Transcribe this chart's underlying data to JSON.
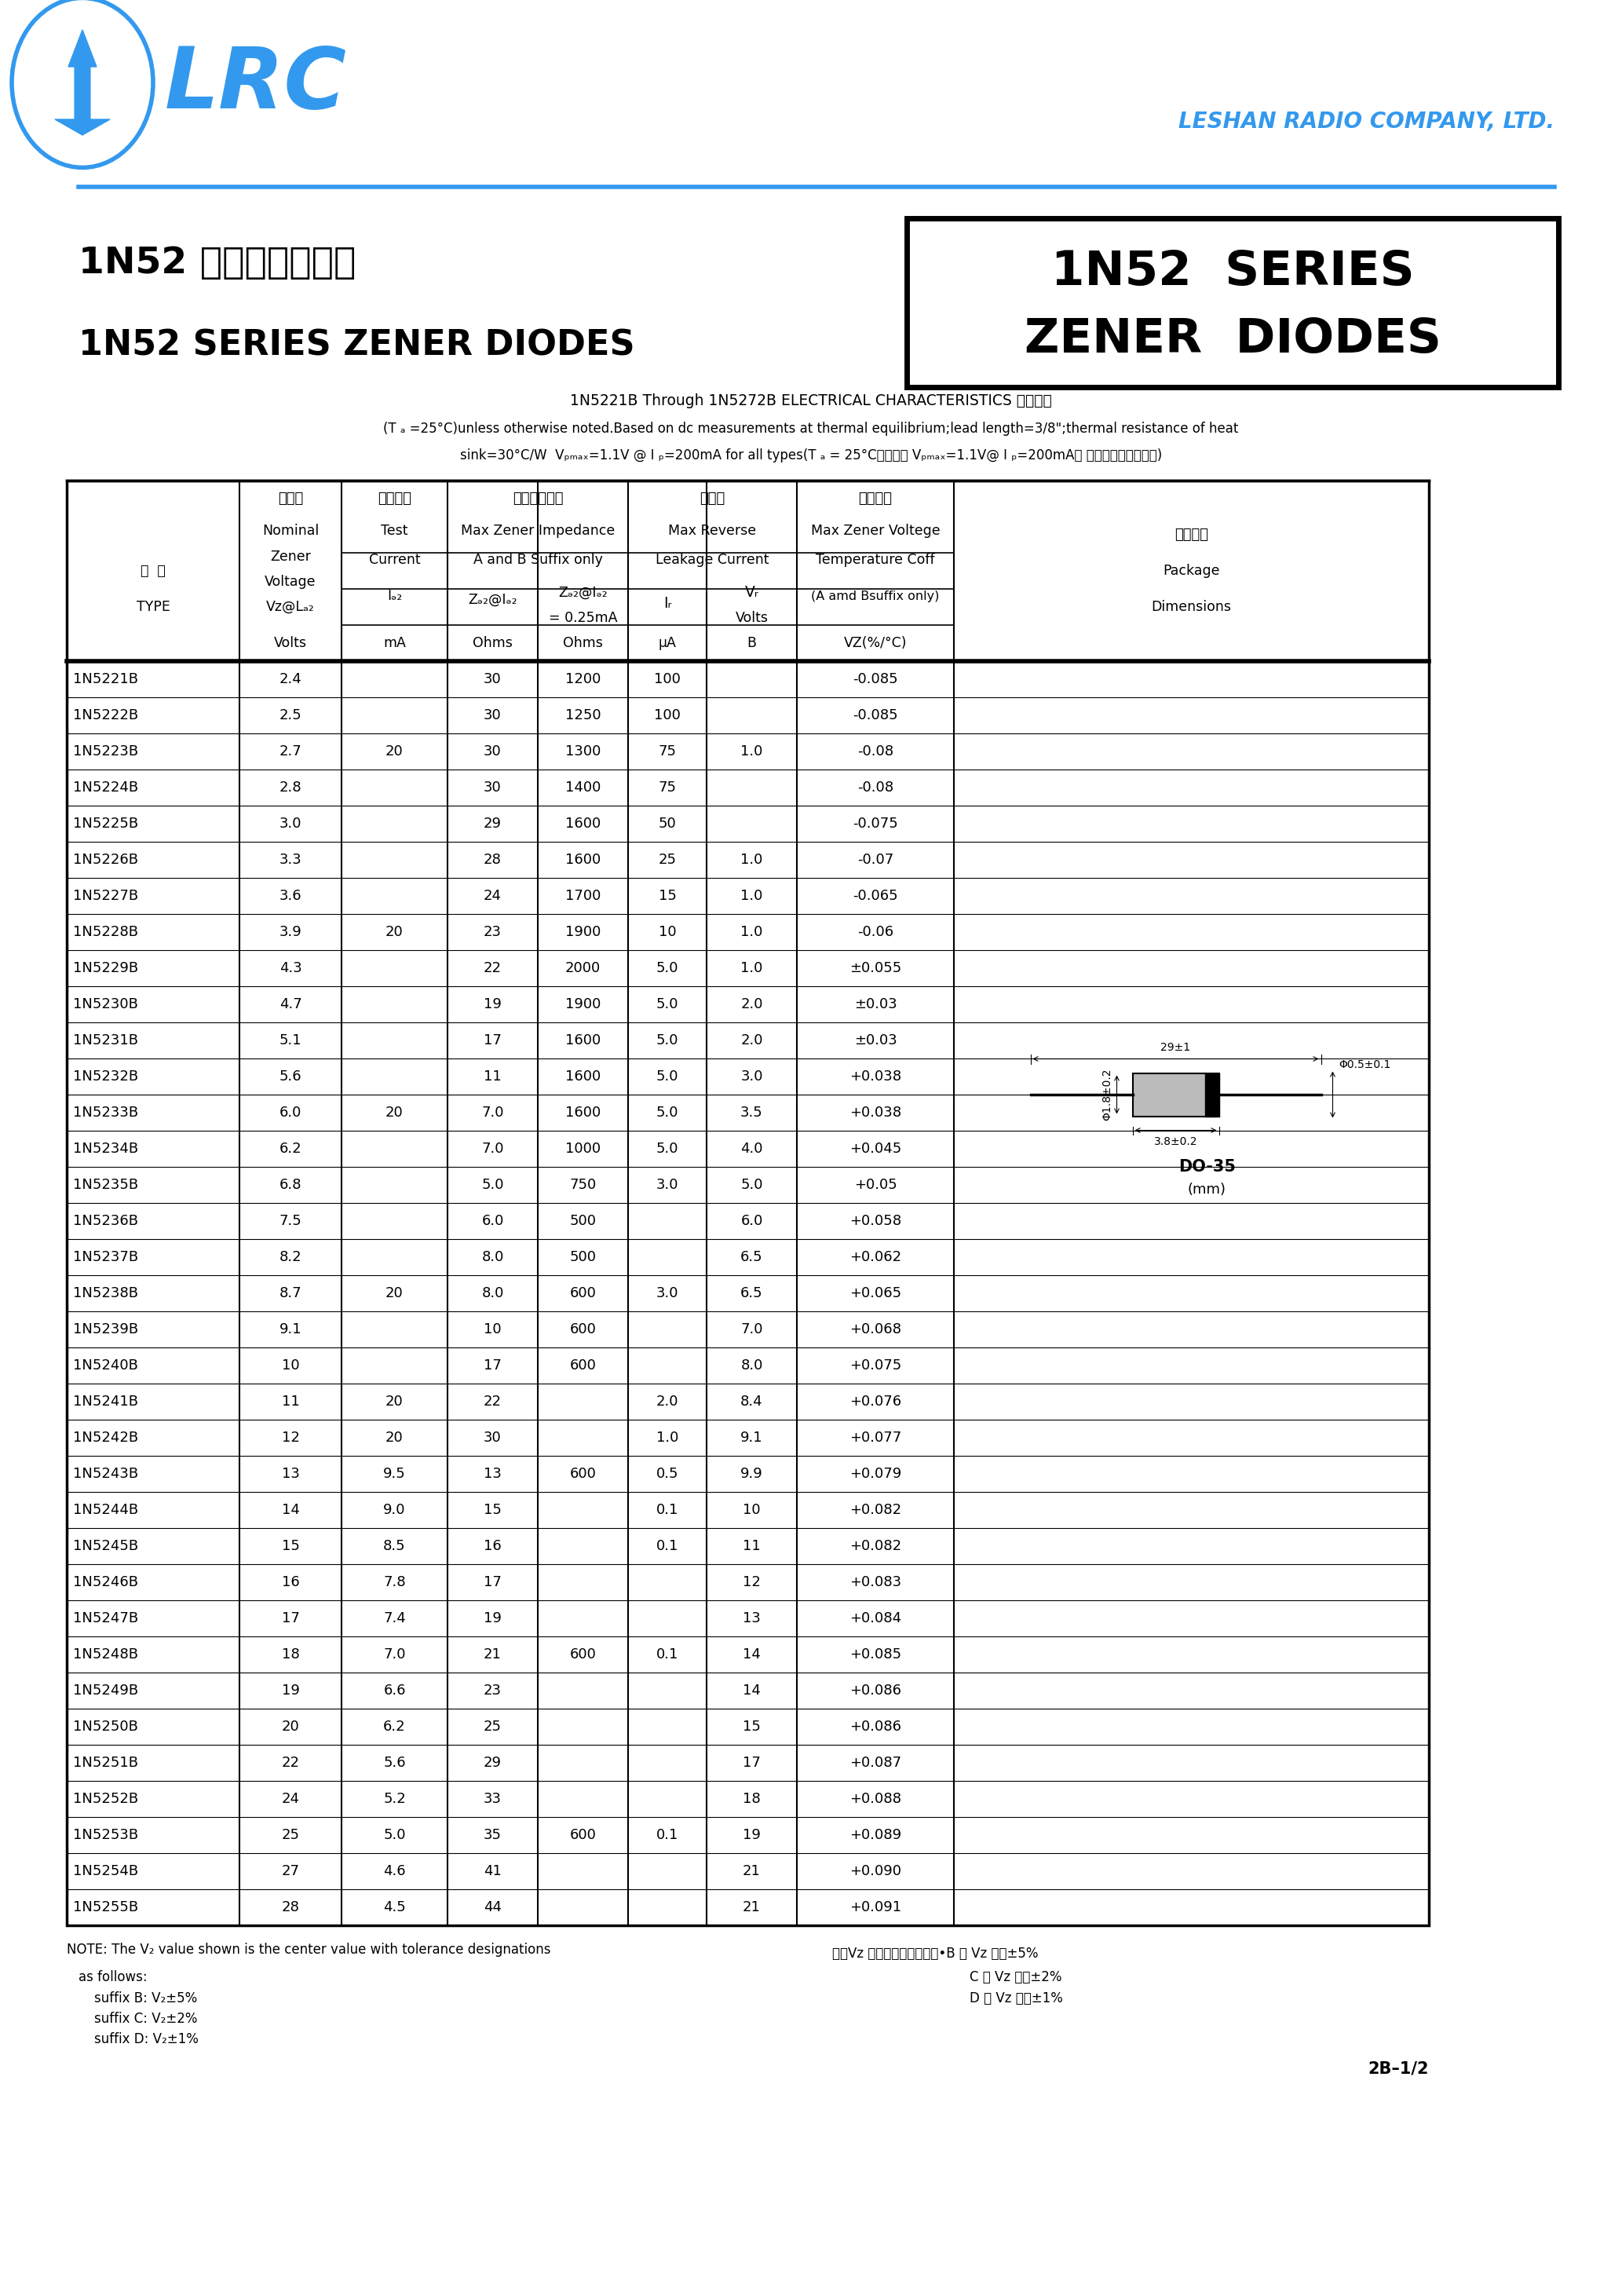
{
  "page_bg": "#ffffff",
  "lrc_color": "#3399ee",
  "company_name": "LESHAN RADIO COMPANY, LTD.",
  "title_box_text1": "1N52  SERIES",
  "title_box_text2": "ZENER  DIODES",
  "chinese_title": "1N52 系列稳压二极管",
  "english_title": "1N52 SERIES ZENER DIODES",
  "note_line1": "1N5221B Through 1N5272B ELECTRICAL CHARACTERISTICS 电性参数",
  "note_line2": "(T ₐ =25°C)unless otherwise noted.Based on dc measurements at thermal equilibrium;lead length=3/8\";thermal resistance of heat",
  "note_line3": "sink=30°C/W  Vₚₘₐₓ=1.1V @ I ₚ=200mA for all types(T ₐ = 25°C所有型号 Vₚₘₐₓ=1.1V@ I ₚ=200mA， 其它特别说明除外。)",
  "col_headers": {
    "h_type1": "型  号",
    "h_type2": "TYPE",
    "h_vz1": "稳压値",
    "h_vz2": "Nominal",
    "h_vz3": "Zener",
    "h_vz4": "Voltage",
    "h_vz5": "Vz@L",
    "h_vz6": "Volts",
    "h_izt1": "测试电流",
    "h_izt2": "Test",
    "h_izt3": "Current",
    "h_izt4": "I",
    "h_izt5": "mA",
    "h_zzt1": "最大动态阻抗",
    "h_zzt2": "Max Zener Impedance",
    "h_zzt3": "A and B Suffix only",
    "h_zzt4": "Z",
    "h_zzt5": "Ohms",
    "h_zzk1": "Z",
    "h_zzk2": "= 0.25mA",
    "h_zzk3": "Ohms",
    "h_lk1": "漏电流",
    "h_lk2": "Max Reverse",
    "h_lk3": "Leakage Current",
    "h_ir1": "I",
    "h_ir2": "μA",
    "h_vr1": "V",
    "h_vr2": "Volts",
    "h_vr3": "B",
    "h_tc1": "温度系数",
    "h_tc2": "Max Zener Voltege",
    "h_tc3": "Temperature Coff",
    "h_tc4": "(A amd Bsuffix only)",
    "h_tc5": "VZ(%/°C)",
    "h_pkg1": "外型尺寸",
    "h_pkg2": "Package",
    "h_pkg3": "Dimensions"
  },
  "table_data": [
    [
      "1N5221B",
      "2.4",
      "",
      "30",
      "1200",
      "100",
      "",
      "-0.085"
    ],
    [
      "1N5222B",
      "2.5",
      "",
      "30",
      "1250",
      "100",
      "",
      "-0.085"
    ],
    [
      "1N5223B",
      "2.7",
      "20",
      "30",
      "1300",
      "75",
      "1.0",
      "-0.08"
    ],
    [
      "1N5224B",
      "2.8",
      "",
      "30",
      "1400",
      "75",
      "",
      "-0.08"
    ],
    [
      "1N5225B",
      "3.0",
      "",
      "29",
      "1600",
      "50",
      "",
      "-0.075"
    ],
    [
      "1N5226B",
      "3.3",
      "",
      "28",
      "1600",
      "25",
      "1.0",
      "-0.07"
    ],
    [
      "1N5227B",
      "3.6",
      "",
      "24",
      "1700",
      "15",
      "1.0",
      "-0.065"
    ],
    [
      "1N5228B",
      "3.9",
      "20",
      "23",
      "1900",
      "10",
      "1.0",
      "-0.06"
    ],
    [
      "1N5229B",
      "4.3",
      "",
      "22",
      "2000",
      "5.0",
      "1.0",
      "±0.055"
    ],
    [
      "1N5230B",
      "4.7",
      "",
      "19",
      "1900",
      "5.0",
      "2.0",
      "±0.03"
    ],
    [
      "1N5231B",
      "5.1",
      "",
      "17",
      "1600",
      "5.0",
      "2.0",
      "±0.03"
    ],
    [
      "1N5232B",
      "5.6",
      "",
      "11",
      "1600",
      "5.0",
      "3.0",
      "+0.038"
    ],
    [
      "1N5233B",
      "6.0",
      "20",
      "7.0",
      "1600",
      "5.0",
      "3.5",
      "+0.038"
    ],
    [
      "1N5234B",
      "6.2",
      "",
      "7.0",
      "1000",
      "5.0",
      "4.0",
      "+0.045"
    ],
    [
      "1N5235B",
      "6.8",
      "",
      "5.0",
      "750",
      "3.0",
      "5.0",
      "+0.05"
    ],
    [
      "1N5236B",
      "7.5",
      "",
      "6.0",
      "500",
      "",
      "6.0",
      "+0.058"
    ],
    [
      "1N5237B",
      "8.2",
      "",
      "8.0",
      "500",
      "",
      "6.5",
      "+0.062"
    ],
    [
      "1N5238B",
      "8.7",
      "20",
      "8.0",
      "600",
      "3.0",
      "6.5",
      "+0.065"
    ],
    [
      "1N5239B",
      "9.1",
      "",
      "10",
      "600",
      "",
      "7.0",
      "+0.068"
    ],
    [
      "1N5240B",
      "10",
      "",
      "17",
      "600",
      "",
      "8.0",
      "+0.075"
    ],
    [
      "1N5241B",
      "11",
      "20",
      "22",
      "",
      "2.0",
      "8.4",
      "+0.076"
    ],
    [
      "1N5242B",
      "12",
      "20",
      "30",
      "",
      "1.0",
      "9.1",
      "+0.077"
    ],
    [
      "1N5243B",
      "13",
      "9.5",
      "13",
      "600",
      "0.5",
      "9.9",
      "+0.079"
    ],
    [
      "1N5244B",
      "14",
      "9.0",
      "15",
      "",
      "0.1",
      "10",
      "+0.082"
    ],
    [
      "1N5245B",
      "15",
      "8.5",
      "16",
      "",
      "0.1",
      "11",
      "+0.082"
    ],
    [
      "1N5246B",
      "16",
      "7.8",
      "17",
      "",
      "",
      "12",
      "+0.083"
    ],
    [
      "1N5247B",
      "17",
      "7.4",
      "19",
      "",
      "",
      "13",
      "+0.084"
    ],
    [
      "1N5248B",
      "18",
      "7.0",
      "21",
      "600",
      "0.1",
      "14",
      "+0.085"
    ],
    [
      "1N5249B",
      "19",
      "6.6",
      "23",
      "",
      "",
      "14",
      "+0.086"
    ],
    [
      "1N5250B",
      "20",
      "6.2",
      "25",
      "",
      "",
      "15",
      "+0.086"
    ],
    [
      "1N5251B",
      "22",
      "5.6",
      "29",
      "",
      "",
      "17",
      "+0.087"
    ],
    [
      "1N5252B",
      "24",
      "5.2",
      "33",
      "",
      "",
      "18",
      "+0.088"
    ],
    [
      "1N5253B",
      "25",
      "5.0",
      "35",
      "600",
      "0.1",
      "19",
      "+0.089"
    ],
    [
      "1N5254B",
      "27",
      "4.6",
      "41",
      "",
      "",
      "21",
      "+0.090"
    ],
    [
      "1N5255B",
      "28",
      "4.5",
      "44",
      "",
      "",
      "21",
      "+0.091"
    ]
  ],
  "note_bottom1": "NOTE: The V₂ value shown is the center value with tolerance designations",
  "note_bottom2": "as follows:",
  "note_bottom3": "suffix B: V₂±5%",
  "note_bottom4": "suffix C: V₂±2%",
  "note_bottom5": "suffix D: V₂±1%",
  "note_chinese1": "注：Vz 为稳压心心値，其中•B 型 Vz 容差±5%",
  "note_chinese2": "C 型 Vz 容差±2%",
  "note_chinese3": "D 型 Vz 容差±1%",
  "page_number": "2B–1/2"
}
